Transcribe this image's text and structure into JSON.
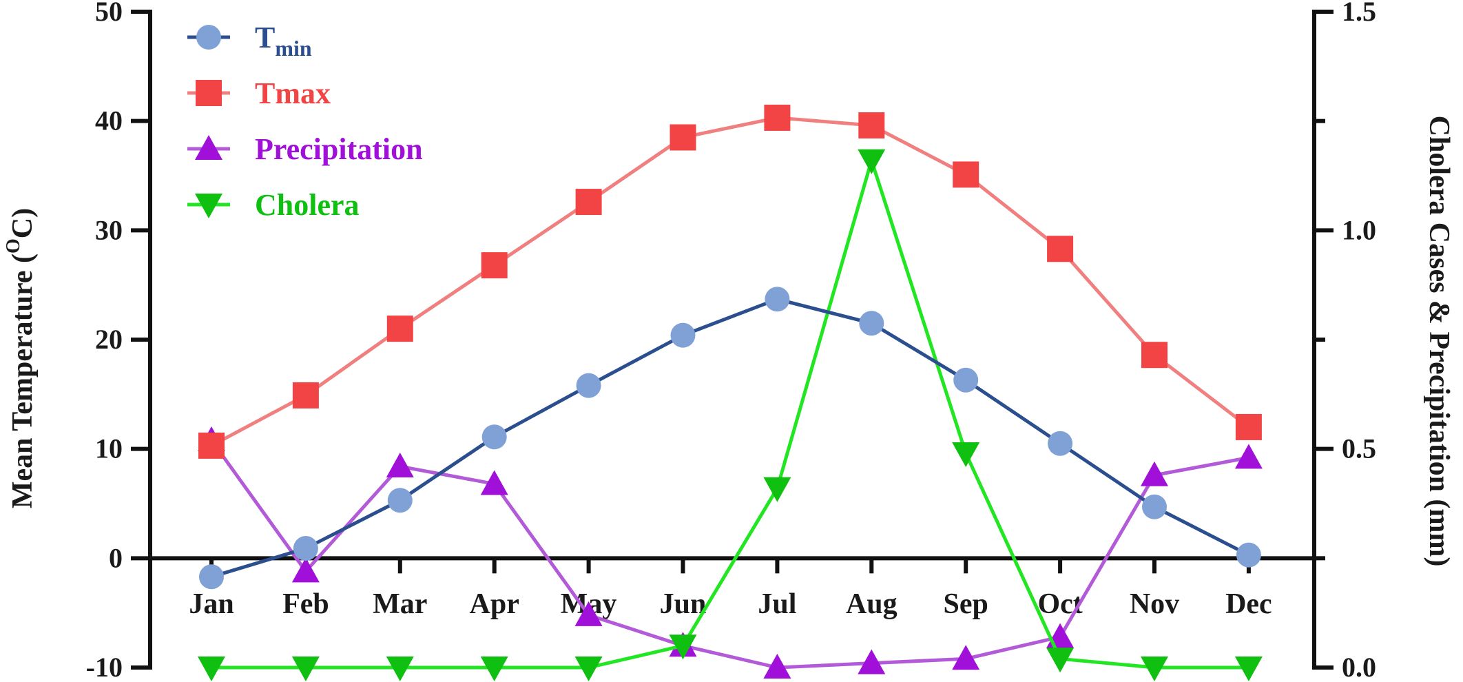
{
  "chart_data": {
    "type": "line",
    "categories": [
      "Jan",
      "Feb",
      "Mar",
      "Apr",
      "May",
      "Jun",
      "Jul",
      "Aug",
      "Sep",
      "Oct",
      "Nov",
      "Dec"
    ],
    "left_axis": {
      "label_main": "Mean Temperature (",
      "label_sup": "O",
      "label_end": "C)",
      "ylim": [
        -10,
        50
      ],
      "ticks": [
        -10,
        0,
        10,
        20,
        30,
        40,
        50
      ]
    },
    "right_axis": {
      "label": "Cholera Cases &  Precipitation (mm)",
      "ylim": [
        0,
        1.5
      ],
      "ticks": [
        "0.0",
        "0.5",
        "1.0",
        "1.5"
      ]
    },
    "series": [
      {
        "name": "T",
        "name_sub": "min",
        "axis": "left",
        "marker": "circle",
        "line_color": "#2b4f8e",
        "marker_color": "#7fa1d6",
        "values": [
          -1.7,
          0.9,
          5.3,
          11.1,
          15.8,
          20.4,
          23.7,
          21.5,
          16.3,
          10.5,
          4.7,
          0.3
        ]
      },
      {
        "name": "Tmax",
        "axis": "left",
        "marker": "square",
        "line_color": "#f08080",
        "marker_color": "#f24444",
        "values": [
          10.3,
          14.9,
          21.0,
          26.8,
          32.6,
          38.5,
          40.3,
          39.6,
          35.1,
          28.3,
          18.6,
          12.0
        ]
      },
      {
        "name": "Precipitation",
        "axis": "right",
        "marker": "triangle-up",
        "line_color": "#b25ad8",
        "marker_color": "#a010d8",
        "values": [
          0.52,
          0.22,
          0.46,
          0.42,
          0.12,
          0.05,
          0.0,
          0.01,
          0.02,
          0.07,
          0.44,
          0.48
        ]
      },
      {
        "name": "Cholera",
        "axis": "right",
        "marker": "triangle-down",
        "line_color": "#22e622",
        "marker_color": "#10c010",
        "values": [
          0.0,
          0.0,
          0.0,
          0.0,
          0.0,
          0.05,
          0.41,
          1.16,
          0.49,
          0.02,
          0.0,
          0.0
        ]
      }
    ],
    "legend_position": "top-left",
    "grid": false
  }
}
